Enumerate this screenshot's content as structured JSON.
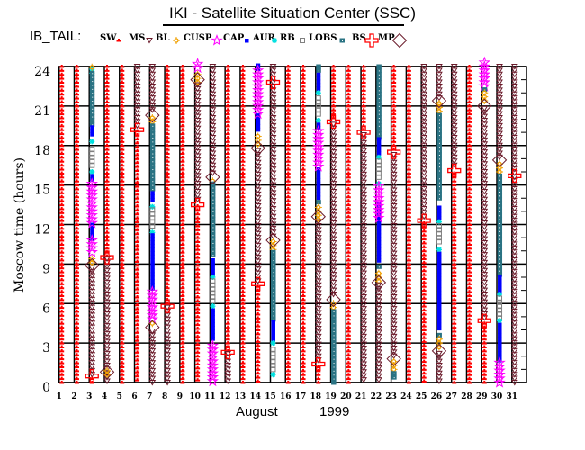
{
  "title": "IKI - Satellite Situation Center (SSC)",
  "legend_heading": "IB_TAIL:",
  "legend": [
    {
      "key": "SW",
      "label": "SW"
    },
    {
      "key": "MS",
      "label": "MS"
    },
    {
      "key": "BL",
      "label": "BL"
    },
    {
      "key": "CUSP",
      "label": "CUSP"
    },
    {
      "key": "CAP",
      "label": "CAP"
    },
    {
      "key": "AUR",
      "label": "AUR"
    },
    {
      "key": "RB",
      "label": "RB"
    },
    {
      "key": "LOBS",
      "label": "LOBS"
    },
    {
      "key": "BS",
      "label": "BS"
    },
    {
      "key": "MP",
      "label": "MP"
    }
  ],
  "colors": {
    "SW": "#ff0000",
    "MS": "#6b1b2b",
    "BL": "#f0a000",
    "CUSP": "#ff00ff",
    "CAP": "#0000ff",
    "AUR": "#00e0e0",
    "RB": "#808080",
    "LOBS": "#2a7383",
    "BS": "#ff0000",
    "MP": "#6b1b2b"
  },
  "chart_data": {
    "type": "scatter",
    "title": "IKI - Satellite Situation Center (SSC)",
    "xlabel_month": "August",
    "xlabel_year": "1999",
    "ylabel": "Moscow time (hours)",
    "xlim": [
      1,
      31
    ],
    "ylim": [
      0,
      24
    ],
    "x_ticks": [
      1,
      2,
      3,
      4,
      5,
      6,
      7,
      8,
      9,
      10,
      11,
      12,
      13,
      14,
      15,
      16,
      17,
      18,
      19,
      20,
      21,
      22,
      23,
      24,
      25,
      26,
      27,
      28,
      29,
      30,
      31
    ],
    "y_ticks": [
      0,
      3,
      6,
      9,
      12,
      15,
      18,
      21,
      24
    ],
    "grid": true,
    "days": [
      {
        "day": 1,
        "segments": [
          [
            "SW",
            0,
            24
          ]
        ],
        "markers": []
      },
      {
        "day": 2,
        "segments": [
          [
            "SW",
            0,
            24
          ]
        ],
        "markers": []
      },
      {
        "day": 3,
        "segments": [
          [
            "AUR",
            23.5,
            23.8
          ],
          [
            "LOBS",
            19.4,
            23.5
          ],
          [
            "CAP",
            18.6,
            19.4
          ],
          [
            "AUR",
            18.2,
            18.4
          ],
          [
            "RB",
            16.5,
            17.7
          ],
          [
            "AUR",
            15.9,
            16.1
          ],
          [
            "CAP",
            15.2,
            15.7
          ],
          [
            "CAP",
            10.9,
            12.0
          ],
          [
            "CUSP",
            12.1,
            15.1
          ],
          [
            "CUSP",
            9.7,
            10.8
          ],
          [
            "BL",
            9.0,
            9.4
          ],
          [
            "BL",
            23.9,
            24
          ],
          [
            "MS",
            0.4,
            8.7
          ],
          [
            "SW",
            0,
            0.3
          ]
        ],
        "markers": [
          [
            "MP",
            8.9
          ],
          [
            "BS",
            0.5
          ]
        ]
      },
      {
        "day": 4,
        "segments": [
          [
            "SW",
            9.6,
            24
          ],
          [
            "MS",
            0,
            9.4
          ],
          [
            "BL",
            0.6,
            0.9
          ]
        ],
        "markers": [
          [
            "BS",
            9.5
          ],
          [
            "MP",
            0.8
          ]
        ]
      },
      {
        "day": 5,
        "segments": [
          [
            "SW",
            0,
            24
          ]
        ],
        "markers": []
      },
      {
        "day": 6,
        "segments": [
          [
            "MS",
            19.3,
            24
          ],
          [
            "SW",
            0,
            19.1
          ]
        ],
        "markers": [
          [
            "BS",
            19.2
          ]
        ]
      },
      {
        "day": 7,
        "segments": [
          [
            "MS",
            20.5,
            24
          ],
          [
            "BL",
            19.6,
            20.1
          ],
          [
            "LOBS",
            14.5,
            19.5
          ],
          [
            "CAP",
            13.6,
            14.4
          ],
          [
            "AUR",
            13.3,
            13.4
          ],
          [
            "RB",
            11.9,
            13.1
          ],
          [
            "AUR",
            11.3,
            11.5
          ],
          [
            "CAP",
            7.1,
            11.2
          ],
          [
            "CUSP",
            4.8,
            6.9
          ],
          [
            "BL",
            4.4,
            4.6
          ],
          [
            "MS",
            0,
            3.9
          ]
        ],
        "markers": [
          [
            "MP",
            20.3
          ],
          [
            "MP",
            4.2
          ]
        ]
      },
      {
        "day": 8,
        "segments": [
          [
            "SW",
            5.9,
            24
          ],
          [
            "MS",
            0,
            5.7
          ]
        ],
        "markers": [
          [
            "BS",
            5.8
          ]
        ]
      },
      {
        "day": 9,
        "segments": [
          [
            "SW",
            0,
            24
          ]
        ],
        "markers": []
      },
      {
        "day": 10,
        "segments": [
          [
            "CUSP",
            23.9,
            24.2
          ],
          [
            "BL",
            22.7,
            23.4
          ],
          [
            "MS",
            13.8,
            22.6
          ],
          [
            "SW",
            0,
            13.4
          ]
        ],
        "markers": [
          [
            "MP",
            23.0
          ],
          [
            "BS",
            13.5
          ]
        ]
      },
      {
        "day": 11,
        "segments": [
          [
            "MS",
            15.8,
            24
          ],
          [
            "BL",
            15.2,
            15.4
          ],
          [
            "LOBS",
            9.6,
            15.1
          ],
          [
            "CAP",
            8.2,
            9.3
          ],
          [
            "AUR",
            7.9,
            8.1
          ],
          [
            "RB",
            6.2,
            7.7
          ],
          [
            "AUR",
            5.7,
            5.9
          ],
          [
            "CAP",
            3.2,
            5.5
          ],
          [
            "CUSP",
            0,
            2.8
          ]
        ],
        "markers": [
          [
            "MP",
            15.6
          ]
        ]
      },
      {
        "day": 12,
        "segments": [
          [
            "SW",
            2.4,
            24
          ],
          [
            "MS",
            0,
            2.2
          ]
        ],
        "markers": [
          [
            "BS",
            2.3
          ]
        ]
      },
      {
        "day": 13,
        "segments": [
          [
            "SW",
            0,
            24
          ]
        ],
        "markers": []
      },
      {
        "day": 14,
        "segments": [
          [
            "CAP",
            23.8,
            24.1
          ],
          [
            "CAP",
            19.0,
            20.3
          ],
          [
            "CUSP",
            20.4,
            23.7
          ],
          [
            "BL",
            18.0,
            18.7
          ],
          [
            "MS",
            7.7,
            17.6
          ],
          [
            "SW",
            0,
            7.3
          ]
        ],
        "markers": [
          [
            "MP",
            17.8
          ],
          [
            "BS",
            7.5
          ]
        ]
      },
      {
        "day": 15,
        "segments": [
          [
            "MS",
            10.9,
            24
          ],
          [
            "BL",
            10.0,
            10.7
          ],
          [
            "LOBS",
            4.8,
            9.9
          ],
          [
            "CAP",
            3.2,
            4.6
          ],
          [
            "AUR",
            2.9,
            3.1
          ],
          [
            "RB",
            1.0,
            2.5
          ],
          [
            "AUR",
            0.5,
            0.7
          ]
        ],
        "markers": [
          [
            "BS",
            22.8
          ],
          [
            "MP",
            10.8
          ]
        ]
      },
      {
        "day": 16,
        "segments": [
          [
            "SW",
            0,
            24
          ]
        ],
        "markers": []
      },
      {
        "day": 17,
        "segments": [
          [
            "SW",
            0,
            24
          ]
        ],
        "markers": []
      },
      {
        "day": 18,
        "segments": [
          [
            "LOBS",
            23.6,
            24
          ],
          [
            "CAP",
            22.2,
            23.4
          ],
          [
            "AUR",
            21.9,
            22.1
          ],
          [
            "RB",
            20.3,
            21.6
          ],
          [
            "AUR",
            19.8,
            20.0
          ],
          [
            "CAP",
            19.2,
            19.6
          ],
          [
            "CAP",
            14.0,
            16.2
          ],
          [
            "CUSP",
            16.3,
            19.1
          ],
          [
            "LOBS",
            13.6,
            13.8
          ],
          [
            "BL",
            12.4,
            13.3
          ],
          [
            "MS",
            1.6,
            12.2
          ],
          [
            "SW",
            0,
            1.2
          ]
        ],
        "markers": [
          [
            "MP",
            12.6
          ],
          [
            "BS",
            1.4
          ]
        ]
      },
      {
        "day": 19,
        "segments": [
          [
            "SW",
            20.0,
            24
          ],
          [
            "MS",
            6.5,
            19.6
          ],
          [
            "BL",
            5.5,
            6.0
          ],
          [
            "LOBS",
            0,
            5.4
          ]
        ],
        "markers": [
          [
            "BS",
            19.8
          ],
          [
            "MP",
            6.3
          ]
        ]
      },
      {
        "day": 20,
        "segments": [
          [
            "SW",
            0,
            24
          ]
        ],
        "markers": []
      },
      {
        "day": 21,
        "segments": [
          [
            "SW",
            19.2,
            24
          ],
          [
            "MS",
            0,
            18.8
          ]
        ],
        "markers": [
          [
            "BS",
            19.0
          ]
        ]
      },
      {
        "day": 22,
        "segments": [
          [
            "LOBS",
            18.5,
            24
          ],
          [
            "CAP",
            17.4,
            18.5
          ],
          [
            "AUR",
            17.0,
            17.2
          ],
          [
            "RB",
            15.4,
            16.8
          ],
          [
            "AUR",
            15.0,
            15.2
          ],
          [
            "CAP",
            9.1,
            13.6
          ],
          [
            "CUSP",
            12.4,
            14.9
          ],
          [
            "LOBS",
            8.7,
            8.9
          ],
          [
            "BL",
            7.7,
            8.3
          ],
          [
            "MS",
            0,
            7.4
          ]
        ],
        "markers": [
          [
            "MP",
            7.6
          ]
        ]
      },
      {
        "day": 23,
        "segments": [
          [
            "SW",
            17.7,
            24
          ],
          [
            "MS",
            2.0,
            17.3
          ],
          [
            "BL",
            1.0,
            1.6
          ],
          [
            "LOBS",
            0.3,
            0.7
          ]
        ],
        "markers": [
          [
            "BS",
            17.5
          ],
          [
            "MP",
            1.8
          ]
        ]
      },
      {
        "day": 24,
        "segments": [
          [
            "SW",
            0,
            24
          ]
        ],
        "markers": []
      },
      {
        "day": 25,
        "segments": [
          [
            "MS",
            12.5,
            24
          ],
          [
            "SW",
            0,
            12.1
          ]
        ],
        "markers": [
          [
            "BS",
            12.3
          ]
        ]
      },
      {
        "day": 26,
        "segments": [
          [
            "MS",
            21.6,
            24
          ],
          [
            "BL",
            20.5,
            21.2
          ],
          [
            "LOBS",
            13.9,
            20.3
          ],
          [
            "CAP",
            12.4,
            13.3
          ],
          [
            "AUR",
            12.1,
            12.3
          ],
          [
            "RB",
            10.5,
            11.9
          ],
          [
            "AUR",
            10.0,
            10.2
          ],
          [
            "CAP",
            3.9,
            9.8
          ],
          [
            "LOBS",
            3.5,
            3.7
          ],
          [
            "BL",
            2.7,
            3.3
          ],
          [
            "MS",
            0,
            2.2
          ]
        ],
        "markers": [
          [
            "MP",
            21.4
          ],
          [
            "MP",
            2.4
          ]
        ]
      },
      {
        "day": 27,
        "segments": [
          [
            "MS",
            16.3,
            24
          ],
          [
            "SW",
            0,
            15.9
          ]
        ],
        "markers": [
          [
            "BS",
            16.1
          ]
        ]
      },
      {
        "day": 28,
        "segments": [
          [
            "SW",
            0,
            24
          ]
        ],
        "markers": []
      },
      {
        "day": 29,
        "segments": [
          [
            "CUSP",
            22.4,
            24.3
          ],
          [
            "LOBS",
            22.2,
            22.3
          ],
          [
            "BL",
            21.2,
            22.0
          ],
          [
            "MS",
            4.9,
            20.8
          ],
          [
            "SW",
            0,
            4.5
          ]
        ],
        "markers": [
          [
            "MP",
            21.0
          ],
          [
            "BS",
            4.7
          ]
        ]
      },
      {
        "day": 30,
        "segments": [
          [
            "MS",
            17.1,
            24
          ],
          [
            "BL",
            15.9,
            16.6
          ],
          [
            "LOBS",
            8.2,
            15.7
          ],
          [
            "CAP",
            6.8,
            8.0
          ],
          [
            "AUR",
            6.6,
            6.8
          ],
          [
            "RB",
            4.9,
            6.4
          ],
          [
            "AUR",
            4.6,
            4.8
          ],
          [
            "CAP",
            1.6,
            4.4
          ],
          [
            "CUSP",
            0,
            1.5
          ]
        ],
        "markers": [
          [
            "MP",
            16.9
          ]
        ]
      },
      {
        "day": 31,
        "segments": [
          [
            "MS",
            0,
            24
          ]
        ],
        "markers": [
          [
            "BS",
            15.7
          ]
        ]
      }
    ]
  }
}
